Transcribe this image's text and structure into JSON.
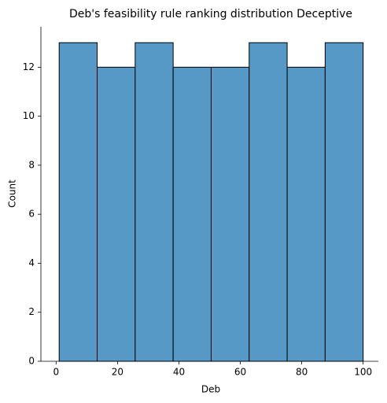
{
  "chart_data": {
    "type": "histogram",
    "title": "Deb's feasibility rule ranking distribution Deceptive",
    "x_label": "Deb",
    "y_label": "Count",
    "bins": [
      1,
      13.375,
      25.75,
      38.125,
      50.5,
      62.875,
      75.25,
      87.625,
      100
    ],
    "values": [
      13,
      12,
      13,
      12,
      12,
      13,
      12,
      13
    ],
    "color": "#5799c6",
    "edge_color": "#000000",
    "xlim": [
      -4.95,
      104.95
    ],
    "ylim": [
      0,
      13.65
    ],
    "xticks": [
      0,
      20,
      40,
      60,
      80,
      100
    ],
    "yticks": [
      0,
      2,
      4,
      6,
      8,
      10,
      12
    ]
  }
}
